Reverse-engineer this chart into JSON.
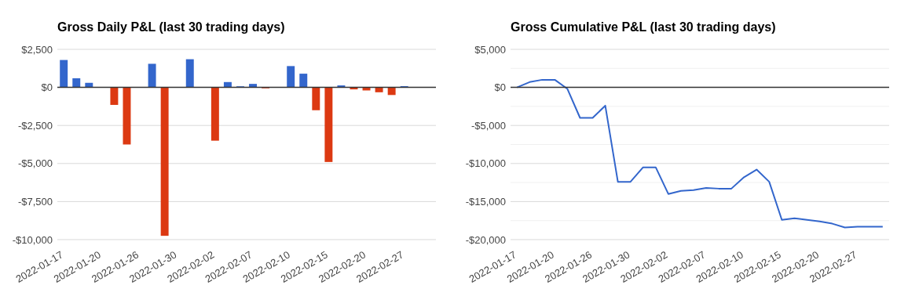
{
  "chart_data": [
    {
      "type": "bar",
      "title": "Gross Daily P&L (last 30 trading days)",
      "categories": [
        "2022-01-17",
        null,
        null,
        "2022-01-20",
        null,
        null,
        "2022-01-26",
        null,
        null,
        "2022-01-30",
        null,
        null,
        "2022-02-02",
        null,
        null,
        "2022-02-07",
        null,
        null,
        "2022-02-10",
        null,
        null,
        "2022-02-15",
        null,
        null,
        "2022-02-20",
        null,
        null,
        "2022-02-27",
        null,
        null
      ],
      "values": [
        1800,
        600,
        300,
        null,
        -1150,
        -3750,
        null,
        1550,
        -9750,
        null,
        1850,
        null,
        -3500,
        350,
        70,
        230,
        -60,
        null,
        1400,
        900,
        -1500,
        -4900,
        130,
        -130,
        -200,
        -320,
        -500,
        80,
        null,
        null
      ],
      "colors": [
        "#3366cc",
        "#3366cc",
        "#3366cc",
        null,
        "#dc3912",
        "#dc3912",
        null,
        "#3366cc",
        "#dc3912",
        null,
        "#3366cc",
        null,
        "#dc3912",
        "#3366cc",
        "#3366cc",
        "#3366cc",
        "#dc3912",
        null,
        "#3366cc",
        "#3366cc",
        "#dc3912",
        "#dc3912",
        "#3366cc",
        "#dc3912",
        "#dc3912",
        "#dc3912",
        "#dc3912",
        "#3366cc",
        null,
        null
      ],
      "ylim": [
        -10000,
        2500
      ],
      "yticks": [
        {
          "value": -10000,
          "label": "-$10,000"
        },
        {
          "value": -7500,
          "label": "-$7,500"
        },
        {
          "value": -5000,
          "label": "-$5,000"
        },
        {
          "value": -2500,
          "label": "-$2,500"
        },
        {
          "value": 0,
          "label": "$0"
        },
        {
          "value": 2500,
          "label": "$2,500"
        }
      ],
      "grid": "y",
      "ref_lines": [
        {
          "axis": "y",
          "value": 0,
          "color": "#333333"
        }
      ]
    },
    {
      "type": "line",
      "title": "Gross Cumulative P&L (last 30 trading days)",
      "categories": [
        "2022-01-17",
        null,
        null,
        "2022-01-20",
        null,
        null,
        "2022-01-26",
        null,
        null,
        "2022-01-30",
        null,
        null,
        "2022-02-02",
        null,
        null,
        "2022-02-07",
        null,
        null,
        "2022-02-10",
        null,
        null,
        "2022-02-15",
        null,
        null,
        "2022-02-20",
        null,
        null,
        "2022-02-27",
        null,
        null
      ],
      "series": [
        {
          "color": "#3366cc",
          "values": [
            0,
            700,
            1000,
            1000,
            -200,
            -4000,
            -4000,
            -2400,
            -12400,
            -12400,
            -10500,
            -10500,
            -14000,
            -13600,
            -13500,
            -13200,
            -13300,
            -13300,
            -11800,
            -10800,
            -12400,
            -17400,
            -17200,
            -17400,
            -17600,
            -17900,
            -18400,
            -18300,
            -18300,
            -18300
          ]
        }
      ],
      "ylim": [
        -20000,
        5000
      ],
      "yticks": [
        {
          "value": -20000,
          "label": "-$20,000"
        },
        {
          "value": -17500,
          "label": null
        },
        {
          "value": -15000,
          "label": "-$15,000"
        },
        {
          "value": -12500,
          "label": null
        },
        {
          "value": -10000,
          "label": "-$10,000"
        },
        {
          "value": -7500,
          "label": null
        },
        {
          "value": -5000,
          "label": "-$5,000"
        },
        {
          "value": -2500,
          "label": null
        },
        {
          "value": 0,
          "label": "$0"
        },
        {
          "value": 2500,
          "label": null
        },
        {
          "value": 5000,
          "label": "$5,000"
        }
      ],
      "grid": "y",
      "marker": "none",
      "line_style": "solid",
      "ref_lines": [
        {
          "axis": "y",
          "value": 0,
          "color": "#333333"
        }
      ]
    }
  ]
}
